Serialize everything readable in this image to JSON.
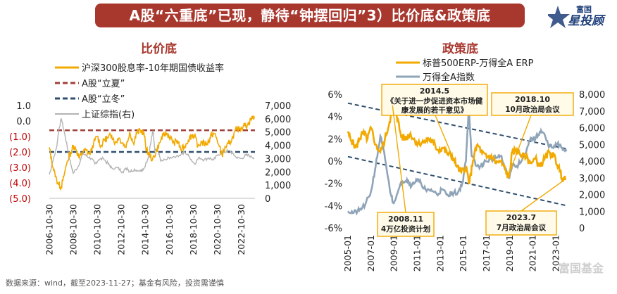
{
  "header": {
    "title": "A股“六重底”已现，静待“钟摆回归”3）比价底&政策底",
    "logo_small": "富国",
    "logo_big": "星投顾"
  },
  "footer": {
    "source": "数据来源：wind，截至2023-11-27；基金有风险，投资需谨慎",
    "watermark": "富国基金"
  },
  "colors": {
    "banner": "#a8372e",
    "orange": "#f2a900",
    "gray_line": "#b3b3b3",
    "blue_gray": "#8fa4b8",
    "red_dash": "#a0413a",
    "navy_dash": "#2f4f6f"
  },
  "chart_data": [
    {
      "type": "line",
      "title": "比价底",
      "legend": [
        "沪深300股息率-10年期国债收益率",
        "A股“立夏”",
        "A股“立冬”",
        "上证综指(右)"
      ],
      "x_ticks": [
        "2006-10-30",
        "2008-10-30",
        "2010-10-30",
        "2012-10-30",
        "2014-10-30",
        "2016-10-30",
        "2018-10-30",
        "2020-10-30",
        "2022-10-30"
      ],
      "y_left_ticks": [
        "1.0",
        "0.0",
        "(1.0)",
        "(2.0)",
        "(3.0)",
        "(4.0)",
        "(5.0)"
      ],
      "y_left_range": [
        -5,
        1
      ],
      "y_right_ticks": [
        "7,000",
        "6,000",
        "5,000",
        "4,000",
        "3,000",
        "2,000",
        "1,000",
        "0"
      ],
      "y_right_range": [
        0,
        7000
      ],
      "reference_lines": {
        "lixia": -0.6,
        "lidong": -2.0
      },
      "series": [
        {
          "name": "沪深300股息率-10年期国债收益率",
          "axis": "left",
          "x": [
            2006.8,
            2007.0,
            2007.3,
            2007.6,
            2007.8,
            2008.0,
            2008.3,
            2008.6,
            2008.8,
            2009.0,
            2009.3,
            2009.6,
            2009.9,
            2010.2,
            2010.5,
            2010.8,
            2011.1,
            2011.4,
            2011.7,
            2012.0,
            2012.3,
            2012.6,
            2012.9,
            2013.2,
            2013.5,
            2013.8,
            2014.1,
            2014.4,
            2014.7,
            2014.9,
            2015.1,
            2015.4,
            2015.7,
            2016.0,
            2016.3,
            2016.6,
            2016.9,
            2017.2,
            2017.5,
            2017.8,
            2018.1,
            2018.4,
            2018.7,
            2018.9,
            2019.2,
            2019.5,
            2019.8,
            2020.1,
            2020.3,
            2020.6,
            2020.9,
            2021.2,
            2021.5,
            2021.8,
            2022.1,
            2022.4,
            2022.7,
            2023.0,
            2023.3,
            2023.6,
            2023.9
          ],
          "y": [
            -1.7,
            -2.6,
            -3.6,
            -4.1,
            -4.3,
            -3.6,
            -2.6,
            -2.0,
            -1.6,
            -1.8,
            -2.4,
            -2.0,
            -1.9,
            -2.2,
            -1.4,
            -1.0,
            -1.6,
            -1.2,
            -1.1,
            -0.9,
            -1.4,
            -1.1,
            -1.4,
            -1.7,
            -0.7,
            -1.4,
            -0.8,
            -0.6,
            -0.8,
            -1.9,
            -2.1,
            -2.5,
            -2.0,
            -1.4,
            -0.9,
            -0.8,
            -1.1,
            -1.4,
            -1.3,
            -1.9,
            -1.6,
            -1.2,
            -0.9,
            -1.0,
            -1.6,
            -1.4,
            -1.5,
            -1.3,
            -0.9,
            -0.8,
            -1.5,
            -2.2,
            -1.7,
            -1.5,
            -1.0,
            -0.6,
            -0.5,
            -0.3,
            -0.3,
            0.1,
            0.3
          ]
        },
        {
          "name": "上证综指(右)",
          "axis": "right",
          "x": [
            2006.8,
            2007.1,
            2007.4,
            2007.6,
            2007.8,
            2008.1,
            2008.4,
            2008.7,
            2008.8,
            2009.2,
            2009.6,
            2009.9,
            2010.3,
            2010.6,
            2010.9,
            2011.3,
            2011.7,
            2012.0,
            2012.5,
            2012.9,
            2013.3,
            2013.5,
            2013.9,
            2014.3,
            2014.6,
            2014.9,
            2015.1,
            2015.3,
            2015.45,
            2015.6,
            2015.9,
            2016.1,
            2016.5,
            2016.9,
            2017.4,
            2017.9,
            2018.1,
            2018.5,
            2018.9,
            2019.3,
            2019.7,
            2020.1,
            2020.5,
            2020.9,
            2021.3,
            2021.8,
            2022.1,
            2022.4,
            2022.8,
            2023.2,
            2023.6,
            2023.9
          ],
          "y": [
            1800,
            2800,
            3800,
            5200,
            6000,
            4800,
            3400,
            2200,
            1900,
            2400,
            3400,
            3200,
            3000,
            2600,
            2900,
            3000,
            2600,
            2300,
            2300,
            2000,
            2300,
            2000,
            2200,
            2050,
            2100,
            2700,
            3300,
            4400,
            5100,
            3600,
            3500,
            2800,
            2900,
            3100,
            3200,
            3350,
            3500,
            3100,
            2600,
            3100,
            2900,
            3050,
            2900,
            3300,
            3500,
            3600,
            3400,
            3050,
            3000,
            3250,
            3200,
            3050
          ]
        }
      ]
    },
    {
      "type": "line",
      "title": "政策底",
      "legend": [
        "标普500ERP-万得全A ERP",
        "万得全A指数"
      ],
      "x_ticks": [
        "2005-01",
        "2007-01",
        "2009-01",
        "2011-01",
        "2013-01",
        "2015-01",
        "2017-01",
        "2019-01",
        "2021-01",
        "2023-01"
      ],
      "y_left_ticks": [
        "6%",
        "4%",
        "2%",
        "0%",
        "-2%",
        "-4%",
        "-6%"
      ],
      "y_left_range": [
        -6,
        6
      ],
      "y_right_ticks": [
        "8,000",
        "7,000",
        "6,000",
        "5,000",
        "4,000",
        "3,000",
        "2,000",
        "1,000",
        "0"
      ],
      "y_right_range": [
        0,
        8000
      ],
      "annotations": [
        {
          "date": "2014.5",
          "text": "《关于进一步促进资本市场健康发展的若干意见》"
        },
        {
          "date": "2018.10",
          "text": "10月政治局会议"
        },
        {
          "date": "2008.11",
          "text": "4万亿投资计划"
        },
        {
          "date": "2023.7",
          "text": "7月政治局会议"
        }
      ],
      "series": [
        {
          "name": "标普500ERP-万得全A ERP",
          "axis": "left",
          "x": [
            2005.0,
            2005.3,
            2005.7,
            2006.0,
            2006.3,
            2006.7,
            2007.0,
            2007.4,
            2007.8,
            2008.2,
            2008.6,
            2008.9,
            2009.2,
            2009.6,
            2010.0,
            2010.4,
            2010.8,
            2011.2,
            2011.6,
            2012.0,
            2012.4,
            2012.8,
            2013.2,
            2013.6,
            2014.0,
            2014.4,
            2014.8,
            2015.2,
            2015.5,
            2015.8,
            2016.2,
            2016.6,
            2017.0,
            2017.4,
            2017.8,
            2018.2,
            2018.6,
            2018.9,
            2019.2,
            2019.6,
            2020.0,
            2020.4,
            2020.8,
            2021.2,
            2021.6,
            2022.0,
            2022.4,
            2022.8,
            2023.2,
            2023.5,
            2023.8
          ],
          "y": [
            2.5,
            1.8,
            1.2,
            2.0,
            2.5,
            2.0,
            3.0,
            1.5,
            0.8,
            2.0,
            3.5,
            5.0,
            4.2,
            2.2,
            2.0,
            2.5,
            1.8,
            1.5,
            1.8,
            2.0,
            1.6,
            1.0,
            1.2,
            0.6,
            0.5,
            -0.5,
            -1.0,
            -0.5,
            -2.0,
            0.0,
            1.5,
            0.7,
            0.3,
            0.5,
            -0.2,
            0.0,
            -0.8,
            -1.5,
            0.8,
            1.0,
            0.5,
            0.3,
            -0.2,
            0.2,
            -0.5,
            0.2,
            0.8,
            0.5,
            -0.5,
            -1.5,
            -1.7
          ]
        },
        {
          "name": "万得全A指数",
          "axis": "right",
          "x": [
            2005.0,
            2005.5,
            2006.0,
            2006.5,
            2007.0,
            2007.4,
            2007.8,
            2008.2,
            2008.6,
            2008.9,
            2009.3,
            2009.7,
            2010.1,
            2010.5,
            2010.9,
            2011.3,
            2011.8,
            2012.2,
            2012.7,
            2013.1,
            2013.6,
            2014.0,
            2014.5,
            2014.9,
            2015.2,
            2015.45,
            2015.7,
            2016.1,
            2016.5,
            2016.9,
            2017.4,
            2017.9,
            2018.2,
            2018.6,
            2018.9,
            2019.2,
            2019.6,
            2020.0,
            2020.4,
            2020.8,
            2021.2,
            2021.6,
            2021.9,
            2022.3,
            2022.7,
            2023.1,
            2023.5,
            2023.9
          ],
          "y": [
            1000,
            900,
            1050,
            1400,
            2200,
            3700,
            5500,
            4200,
            2400,
            1500,
            2100,
            2800,
            2900,
            2500,
            2900,
            2700,
            2200,
            2300,
            2000,
            2300,
            2000,
            2100,
            2100,
            2700,
            4000,
            7200,
            4300,
            3700,
            3700,
            4000,
            4100,
            4200,
            4300,
            3600,
            3000,
            3800,
            3700,
            4000,
            4500,
            5400,
            5300,
            5800,
            5700,
            5000,
            4800,
            5000,
            4800,
            4600
          ]
        }
      ]
    }
  ]
}
